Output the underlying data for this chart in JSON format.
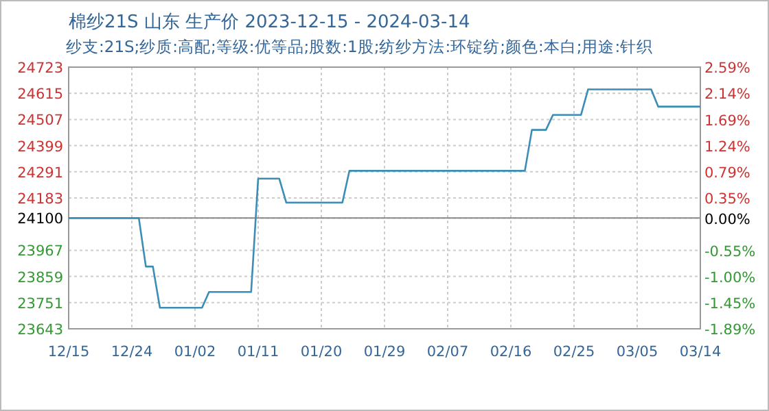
{
  "chart_data": {
    "type": "line",
    "title": "棉纱21S 山东 生产价 2023-12-15 - 2024-03-14",
    "subtitle": "纱支:21S;纱质:高配;等级:优等品;股数:1股;纺纱方法:环锭纺;颜色:本白;用途:针织",
    "series": [
      {
        "color": "#3b8db5",
        "x": [
          "2023-12-15",
          "2023-12-25",
          "2023-12-26",
          "2023-12-27",
          "2023-12-28",
          "2024-01-03",
          "2024-01-04",
          "2024-01-10",
          "2024-01-11",
          "2024-01-14",
          "2024-01-15",
          "2024-01-23",
          "2024-01-24",
          "2024-02-18",
          "2024-02-19",
          "2024-02-21",
          "2024-02-22",
          "2024-02-26",
          "2024-02-27",
          "2024-03-07",
          "2024-03-08",
          "2024-03-14"
        ],
        "values": [
          24100,
          24100,
          23900,
          23900,
          23730,
          23730,
          23795,
          23795,
          24263,
          24263,
          24164,
          24164,
          24295,
          24295,
          24464,
          24464,
          24526,
          24526,
          24631,
          24631,
          24560,
          24560
        ]
      }
    ],
    "xlim": [
      "2023-12-15",
      "2024-03-14"
    ],
    "xticks": [
      {
        "value": "2023-12-15",
        "label": "12/15"
      },
      {
        "value": "2023-12-24",
        "label": "12/24"
      },
      {
        "value": "2024-01-02",
        "label": "01/02"
      },
      {
        "value": "2024-01-11",
        "label": "01/11"
      },
      {
        "value": "2024-01-20",
        "label": "01/20"
      },
      {
        "value": "2024-01-29",
        "label": "01/29"
      },
      {
        "value": "2024-02-07",
        "label": "02/07"
      },
      {
        "value": "2024-02-16",
        "label": "02/16"
      },
      {
        "value": "2024-02-25",
        "label": "02/25"
      },
      {
        "value": "2024-03-05",
        "label": "03/05"
      },
      {
        "value": "2024-03-14",
        "label": "03/14"
      }
    ],
    "ylim": [
      23643,
      24723
    ],
    "yticks": [
      23643,
      23751,
      23859,
      23967,
      24100,
      24183,
      24291,
      24399,
      24507,
      24615,
      24723
    ],
    "y2lim": [
      -1.89,
      2.59
    ],
    "y2ticks": [
      {
        "value": -1.89,
        "label": "-1.89%"
      },
      {
        "value": -1.45,
        "label": "-1.45%"
      },
      {
        "value": -1.0,
        "label": "-1.00%"
      },
      {
        "value": -0.55,
        "label": "-0.55%"
      },
      {
        "value": 0,
        "label": "0.00%"
      },
      {
        "value": 0.35,
        "label": "0.35%"
      },
      {
        "value": 0.79,
        "label": "0.79%"
      },
      {
        "value": 1.24,
        "label": "1.24%"
      },
      {
        "value": 1.69,
        "label": "1.69%"
      },
      {
        "value": 2.14,
        "label": "2.14%"
      },
      {
        "value": 2.59,
        "label": "2.59%"
      }
    ],
    "ref_lines": [
      {
        "axis": "y",
        "value": 24100,
        "color": "#888888"
      }
    ],
    "grid": true
  }
}
